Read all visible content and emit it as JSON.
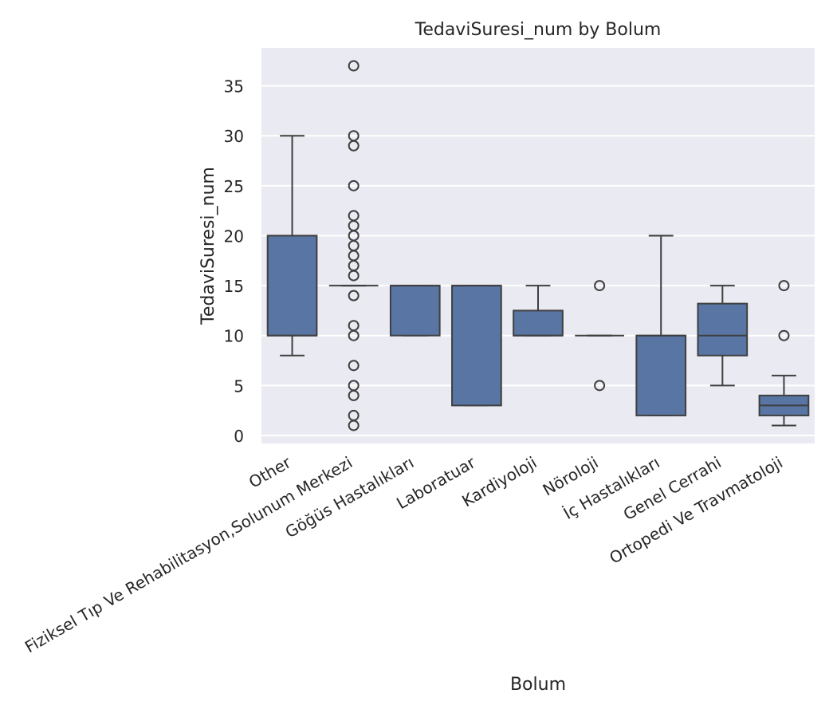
{
  "chart_data": {
    "type": "box",
    "title": "TedaviSuresi_num by Bolum",
    "xlabel": "Bolum",
    "ylabel": "TedaviSuresi_num",
    "ylim": [
      -0.8,
      38.8
    ],
    "yticks": [
      0,
      5,
      10,
      15,
      20,
      25,
      30,
      35
    ],
    "grid": true,
    "box_color": "#5875a4",
    "edge_color": "#3f3f3f",
    "background_color": "#eaeaf2",
    "categories": [
      "Other",
      "Fiziksel Tıp Ve Rehabilitasyon,Solunum Merkezi",
      "Göğüs Hastalıkları",
      "Laboratuar",
      "Kardiyoloji",
      "Nöroloji",
      "İç Hastalıkları",
      "Genel Cerrahi",
      "Ortopedi Ve Travmatoloji"
    ],
    "boxes": [
      {
        "whislo": 8,
        "q1": 10,
        "med": 10,
        "q3": 20,
        "whishi": 30,
        "fliers": []
      },
      {
        "whislo": 15,
        "q1": 15,
        "med": 15,
        "q3": 15,
        "whishi": 15,
        "fliers": [
          1,
          2,
          4,
          5,
          7,
          10,
          11,
          14,
          16,
          17,
          18,
          19,
          20,
          21,
          22,
          25,
          29,
          30,
          37
        ]
      },
      {
        "whislo": 10,
        "q1": 10,
        "med": 15,
        "q3": 15,
        "whishi": 15,
        "fliers": []
      },
      {
        "whislo": 3,
        "q1": 3,
        "med": 15,
        "q3": 15,
        "whishi": 15,
        "fliers": []
      },
      {
        "whislo": 10,
        "q1": 10,
        "med": 10,
        "q3": 12.5,
        "whishi": 15,
        "fliers": []
      },
      {
        "whislo": 10,
        "q1": 10,
        "med": 10,
        "q3": 10,
        "whishi": 10,
        "fliers": [
          5,
          15
        ]
      },
      {
        "whislo": 2,
        "q1": 2,
        "med": 10,
        "q3": 10,
        "whishi": 20,
        "fliers": []
      },
      {
        "whislo": 5,
        "q1": 8,
        "med": 10,
        "q3": 13.2,
        "whishi": 15,
        "fliers": []
      },
      {
        "whislo": 1,
        "q1": 2,
        "med": 3,
        "q3": 4,
        "whishi": 6,
        "fliers": [
          10,
          15
        ]
      }
    ]
  }
}
